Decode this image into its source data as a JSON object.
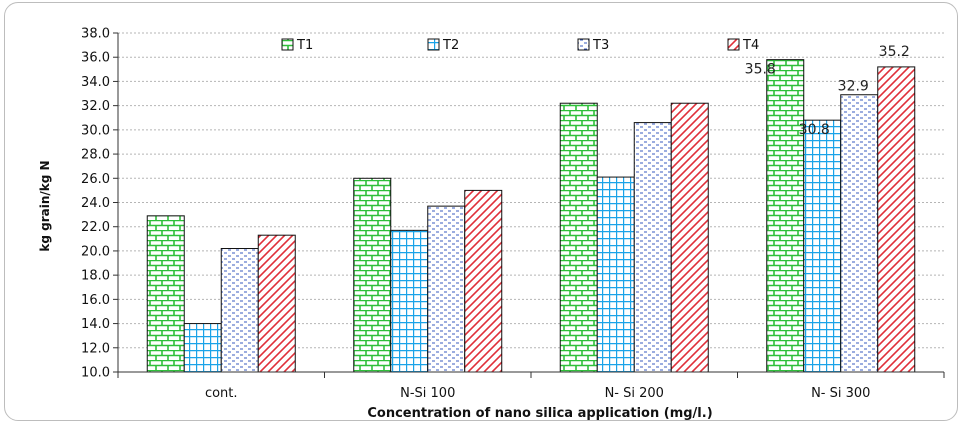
{
  "chart_data": {
    "type": "bar",
    "title": "",
    "xlabel": "Concentration of nano silica application  (mg/l.)",
    "ylabel": "kg grain/kg N",
    "ylim": [
      10.0,
      38.0
    ],
    "y_ticks": [
      "10.0",
      "12.0",
      "14.0",
      "16.0",
      "18.0",
      "20.0",
      "22.0",
      "24.0",
      "26.0",
      "28.0",
      "30.0",
      "32.0",
      "34.0",
      "36.0",
      "38.0"
    ],
    "categories": [
      "cont.",
      "N-Si 100",
      "N- Si 200",
      "N- Si 300"
    ],
    "series": [
      {
        "name": "T1",
        "values": [
          22.9,
          26.0,
          32.2,
          35.8
        ],
        "color": "#2fbf3a",
        "pattern": "brick"
      },
      {
        "name": "T2",
        "values": [
          14.0,
          21.7,
          26.1,
          30.8
        ],
        "color": "#1aa3e8",
        "pattern": "grid"
      },
      {
        "name": "T3",
        "values": [
          20.2,
          23.7,
          30.6,
          32.9
        ],
        "color": "#3a5bbf",
        "pattern": "dashes"
      },
      {
        "name": "T4",
        "values": [
          21.3,
          25.0,
          32.2,
          35.2
        ],
        "color": "#e0303a",
        "pattern": "diagonal"
      }
    ],
    "data_labels": [
      {
        "series": 0,
        "category": 3,
        "text": "35.8"
      },
      {
        "series": 1,
        "category": 3,
        "text": "30.8"
      },
      {
        "series": 2,
        "category": 3,
        "text": "32.9"
      },
      {
        "series": 3,
        "category": 3,
        "text": "35.2"
      }
    ],
    "grid": true,
    "legend_position": "top"
  }
}
